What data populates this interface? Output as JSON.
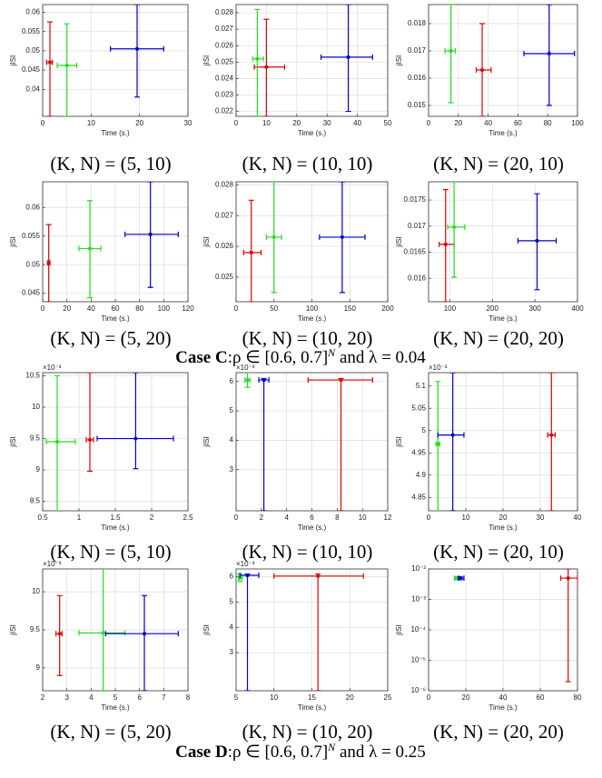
{
  "chart_data": [
    {
      "type": "errorbar",
      "xlabel": "Time (s.)",
      "ylabel": "jISI",
      "caption": "(K, N) = (5, 10)",
      "grid": true,
      "xlim": [
        0,
        30
      ],
      "ylim": [
        0.033,
        0.062
      ],
      "xticks": [
        0,
        10,
        20,
        30
      ],
      "yticks": [
        0.04,
        0.045,
        0.05,
        0.055,
        0.06
      ],
      "series": [
        {
          "color": "#e00000",
          "x": [
            1.5
          ],
          "values": [
            0.047
          ],
          "xlow": [
            0.8
          ],
          "xhigh": [
            2.0
          ],
          "ylow": [
            0.033
          ],
          "yhigh": [
            0.0575
          ]
        },
        {
          "color": "#22dd22",
          "x": [
            5
          ],
          "values": [
            0.0462
          ],
          "xlow": [
            3
          ],
          "xhigh": [
            7
          ],
          "ylow": [
            0.033
          ],
          "yhigh": [
            0.057
          ]
        },
        {
          "color": "#0000cc",
          "x": [
            19.5
          ],
          "values": [
            0.0505
          ],
          "xlow": [
            14
          ],
          "xhigh": [
            25
          ],
          "ylow": [
            0.038
          ],
          "yhigh": [
            0.062
          ]
        }
      ]
    },
    {
      "type": "errorbar",
      "xlabel": "Time (s.)",
      "ylabel": "jISI",
      "caption": "(K, N) = (10, 10)",
      "grid": true,
      "xlim": [
        0,
        50
      ],
      "ylim": [
        0.0217,
        0.0285
      ],
      "xticks": [
        0,
        10,
        20,
        30,
        40,
        50
      ],
      "yticks": [
        0.022,
        0.023,
        0.024,
        0.025,
        0.026,
        0.027,
        0.028
      ],
      "series": [
        {
          "color": "#e00000",
          "x": [
            10
          ],
          "values": [
            0.0247
          ],
          "xlow": [
            6
          ],
          "xhigh": [
            16
          ],
          "ylow": [
            0.0217
          ],
          "yhigh": [
            0.0276
          ]
        },
        {
          "color": "#22dd22",
          "x": [
            7
          ],
          "values": [
            0.0252
          ],
          "xlow": [
            5.5
          ],
          "xhigh": [
            9
          ],
          "ylow": [
            0.0217
          ],
          "yhigh": [
            0.0282
          ]
        },
        {
          "color": "#0000cc",
          "x": [
            37
          ],
          "values": [
            0.0253
          ],
          "xlow": [
            28
          ],
          "xhigh": [
            45
          ],
          "ylow": [
            0.022
          ],
          "yhigh": [
            0.0285
          ]
        }
      ]
    },
    {
      "type": "errorbar",
      "xlabel": "Time (s.)",
      "ylabel": "jISI",
      "caption": "(K, N) = (20, 10)",
      "grid": true,
      "xlim": [
        0,
        100
      ],
      "ylim": [
        0.0146,
        0.0187
      ],
      "xticks": [
        0,
        20,
        40,
        60,
        80,
        100
      ],
      "yticks": [
        0.015,
        0.016,
        0.017,
        0.018
      ],
      "series": [
        {
          "color": "#e00000",
          "x": [
            36
          ],
          "values": [
            0.0163
          ],
          "xlow": [
            32
          ],
          "xhigh": [
            42
          ],
          "ylow": [
            0.0146
          ],
          "yhigh": [
            0.018
          ]
        },
        {
          "color": "#22dd22",
          "x": [
            15
          ],
          "values": [
            0.017
          ],
          "xlow": [
            11
          ],
          "xhigh": [
            18
          ],
          "ylow": [
            0.0151
          ],
          "yhigh": [
            0.0187
          ]
        },
        {
          "color": "#0000cc",
          "x": [
            81
          ],
          "values": [
            0.0169
          ],
          "xlow": [
            64
          ],
          "xhigh": [
            98
          ],
          "ylow": [
            0.015
          ],
          "yhigh": [
            0.0187
          ]
        }
      ]
    },
    {
      "type": "errorbar",
      "xlabel": "Time (s.)",
      "ylabel": "jISI",
      "caption": "(K, N) = (5, 20)",
      "grid": true,
      "xlim": [
        0,
        120
      ],
      "ylim": [
        0.0435,
        0.0645
      ],
      "xticks": [
        0,
        20,
        40,
        60,
        80,
        100,
        120
      ],
      "yticks": [
        0.045,
        0.05,
        0.055,
        0.06
      ],
      "series": [
        {
          "color": "#e00000",
          "x": [
            5
          ],
          "values": [
            0.0503
          ],
          "xlow": [
            4
          ],
          "xhigh": [
            6
          ],
          "ylow": [
            0.0435
          ],
          "yhigh": [
            0.057
          ]
        },
        {
          "color": "#22dd22",
          "x": [
            39
          ],
          "values": [
            0.0528
          ],
          "xlow": [
            30
          ],
          "xhigh": [
            48
          ],
          "ylow": [
            0.0442
          ],
          "yhigh": [
            0.0612
          ]
        },
        {
          "color": "#0000cc",
          "x": [
            89
          ],
          "values": [
            0.0553
          ],
          "xlow": [
            68
          ],
          "xhigh": [
            112
          ],
          "ylow": [
            0.046
          ],
          "yhigh": [
            0.0645
          ]
        }
      ]
    },
    {
      "type": "errorbar",
      "xlabel": "Time (s.)",
      "ylabel": "jISI",
      "caption": "(K, N) = (10, 20)",
      "grid": true,
      "xlim": [
        0,
        200
      ],
      "ylim": [
        0.0242,
        0.0281
      ],
      "xticks": [
        0,
        50,
        100,
        150,
        200
      ],
      "yticks": [
        0.025,
        0.026,
        0.027,
        0.028
      ],
      "series": [
        {
          "color": "#e00000",
          "x": [
            20
          ],
          "values": [
            0.0258
          ],
          "xlow": [
            10
          ],
          "xhigh": [
            33
          ],
          "ylow": [
            0.0242
          ],
          "yhigh": [
            0.0275
          ]
        },
        {
          "color": "#22dd22",
          "x": [
            50
          ],
          "values": [
            0.0263
          ],
          "xlow": [
            40
          ],
          "xhigh": [
            60
          ],
          "ylow": [
            0.0245
          ],
          "yhigh": [
            0.0281
          ]
        },
        {
          "color": "#0000cc",
          "x": [
            140
          ],
          "values": [
            0.0263
          ],
          "xlow": [
            110
          ],
          "xhigh": [
            170
          ],
          "ylow": [
            0.0245
          ],
          "yhigh": [
            0.0281
          ]
        }
      ]
    },
    {
      "type": "errorbar",
      "xlabel": "Time (s.)",
      "ylabel": "jISI",
      "caption": "(K, N) = (20, 20)",
      "grid": true,
      "xlim": [
        50,
        400
      ],
      "ylim": [
        0.01555,
        0.01785
      ],
      "xticks": [
        100,
        200,
        300,
        400
      ],
      "yticks": [
        0.016,
        0.0165,
        0.017,
        0.0175
      ],
      "series": [
        {
          "color": "#e00000",
          "x": [
            90
          ],
          "values": [
            0.01665
          ],
          "xlow": [
            75
          ],
          "xhigh": [
            110
          ],
          "ylow": [
            0.01555
          ],
          "yhigh": [
            0.0177
          ]
        },
        {
          "color": "#22dd22",
          "x": [
            110
          ],
          "values": [
            0.01698
          ],
          "xlow": [
            95
          ],
          "xhigh": [
            135
          ],
          "ylow": [
            0.01602
          ],
          "yhigh": [
            0.01785
          ]
        },
        {
          "color": "#0000cc",
          "x": [
            305
          ],
          "values": [
            0.01672
          ],
          "xlow": [
            260
          ],
          "xhigh": [
            350
          ],
          "ylow": [
            0.01578
          ],
          "yhigh": [
            0.01762
          ]
        }
      ]
    },
    {
      "type": "errorbar",
      "xlabel": "Time (s.)",
      "ylabel": "jISI",
      "caption": "(K, N) = (5, 10)",
      "grid": true,
      "y_multiplier": "×10⁻³",
      "xlim": [
        0.5,
        2.5
      ],
      "ylim": [
        8.35,
        10.55
      ],
      "xticks": [
        0.5,
        1,
        1.5,
        2,
        2.5
      ],
      "yticks": [
        8.5,
        9,
        9.5,
        10,
        10.5
      ],
      "series": [
        {
          "color": "#e00000",
          "x": [
            1.15
          ],
          "values": [
            9.48
          ],
          "xlow": [
            1.1
          ],
          "xhigh": [
            1.2
          ],
          "ylow": [
            8.98
          ],
          "yhigh": [
            10.55
          ]
        },
        {
          "color": "#22dd22",
          "x": [
            0.7
          ],
          "values": [
            9.45
          ],
          "xlow": [
            0.55
          ],
          "xhigh": [
            0.95
          ],
          "ylow": [
            8.35
          ],
          "yhigh": [
            10.5
          ]
        },
        {
          "color": "#0000cc",
          "x": [
            1.78
          ],
          "values": [
            9.5
          ],
          "xlow": [
            1.25
          ],
          "xhigh": [
            2.3
          ],
          "ylow": [
            9.02
          ],
          "yhigh": [
            10.55
          ]
        }
      ]
    },
    {
      "type": "errorbar",
      "xlabel": "Time (s.)",
      "ylabel": "jISI",
      "caption": "(K, N) = (10, 10)",
      "grid": true,
      "y_multiplier": "×10⁻³",
      "xlim": [
        0,
        12
      ],
      "ylim": [
        1.6,
        6.3
      ],
      "xticks": [
        0,
        2,
        4,
        6,
        8,
        10,
        12
      ],
      "yticks": [
        3,
        4,
        5,
        6
      ],
      "series": [
        {
          "color": "#e00000",
          "x": [
            8.3
          ],
          "values": [
            6.05
          ],
          "xlow": [
            5.7
          ],
          "xhigh": [
            10.8
          ],
          "ylow": [
            1.6
          ],
          "yhigh": [
            6.1
          ]
        },
        {
          "color": "#22dd22",
          "x": [
            0.9
          ],
          "values": [
            6.05
          ],
          "xlow": [
            0.7
          ],
          "xhigh": [
            1.1
          ],
          "ylow": [
            5.8
          ],
          "yhigh": [
            6.3
          ]
        },
        {
          "color": "#0000cc",
          "x": [
            2.2
          ],
          "values": [
            6.05
          ],
          "xlow": [
            1.8
          ],
          "xhigh": [
            2.6
          ],
          "ylow": [
            1.6
          ],
          "yhigh": [
            6.1
          ]
        }
      ]
    },
    {
      "type": "errorbar",
      "xlabel": "Time (s.)",
      "ylabel": "jISI",
      "caption": "(K, N) = (20, 10)",
      "grid": true,
      "y_multiplier": "×10⁻³",
      "xlim": [
        0,
        40
      ],
      "ylim": [
        4.82,
        5.13
      ],
      "xticks": [
        0,
        10,
        20,
        30,
        40
      ],
      "yticks": [
        4.85,
        4.9,
        4.95,
        5,
        5.05,
        5.1
      ],
      "series": [
        {
          "color": "#e00000",
          "x": [
            33
          ],
          "values": [
            4.99
          ],
          "xlow": [
            32
          ],
          "xhigh": [
            34
          ],
          "ylow": [
            4.82
          ],
          "yhigh": [
            5.13
          ]
        },
        {
          "color": "#22dd22",
          "x": [
            2.5
          ],
          "values": [
            4.97
          ],
          "xlow": [
            2
          ],
          "xhigh": [
            3
          ],
          "ylow": [
            4.82
          ],
          "yhigh": [
            5.11
          ]
        },
        {
          "color": "#0000cc",
          "x": [
            6.5
          ],
          "values": [
            4.99
          ],
          "xlow": [
            2.5
          ],
          "xhigh": [
            9.5
          ],
          "ylow": [
            4.82
          ],
          "yhigh": [
            5.13
          ]
        }
      ]
    },
    {
      "type": "errorbar",
      "xlabel": "Time (s.)",
      "ylabel": "jISI",
      "caption": "(K, N) = (5, 20)",
      "grid": true,
      "y_multiplier": "×10⁻³",
      "xlim": [
        2,
        8
      ],
      "ylim": [
        8.7,
        10.3
      ],
      "xticks": [
        2,
        3,
        4,
        5,
        6,
        7,
        8
      ],
      "yticks": [
        9,
        9.5,
        10
      ],
      "series": [
        {
          "color": "#e00000",
          "x": [
            2.7
          ],
          "values": [
            9.45
          ],
          "xlow": [
            2.55
          ],
          "xhigh": [
            2.8
          ],
          "ylow": [
            8.9
          ],
          "yhigh": [
            9.95
          ]
        },
        {
          "color": "#22dd22",
          "x": [
            4.5
          ],
          "values": [
            9.46
          ],
          "xlow": [
            3.5
          ],
          "xhigh": [
            5.4
          ],
          "ylow": [
            8.7
          ],
          "yhigh": [
            10.3
          ]
        },
        {
          "color": "#0000cc",
          "x": [
            6.2
          ],
          "values": [
            9.45
          ],
          "xlow": [
            4.6
          ],
          "xhigh": [
            7.6
          ],
          "ylow": [
            8.7
          ],
          "yhigh": [
            9.95
          ]
        }
      ]
    },
    {
      "type": "errorbar",
      "xlabel": "Time (s.)",
      "ylabel": "jISI",
      "caption": "(K, N) = (10, 20)",
      "grid": true,
      "y_multiplier": "×10⁻³",
      "xlim": [
        5,
        25
      ],
      "ylim": [
        1.5,
        6.3
      ],
      "xticks": [
        5,
        10,
        15,
        20,
        25
      ],
      "yticks": [
        3,
        4,
        5,
        6
      ],
      "series": [
        {
          "color": "#e00000",
          "x": [
            15.8
          ],
          "values": [
            6.02
          ],
          "xlow": [
            10
          ],
          "xhigh": [
            21.8
          ],
          "ylow": [
            1.5
          ],
          "yhigh": [
            6.1
          ]
        },
        {
          "color": "#22dd22",
          "x": [
            5.5
          ],
          "values": [
            5.95
          ],
          "xlow": [
            5.3
          ],
          "xhigh": [
            5.8
          ],
          "ylow": [
            5.8
          ],
          "yhigh": [
            6.1
          ]
        },
        {
          "color": "#0000cc",
          "x": [
            6.5
          ],
          "values": [
            6.05
          ],
          "xlow": [
            5.5
          ],
          "xhigh": [
            8
          ],
          "ylow": [
            1.5
          ],
          "yhigh": [
            6.1
          ]
        }
      ]
    },
    {
      "type": "errorbar",
      "xlabel": "Time (s.)",
      "ylabel": "jISI",
      "caption": "(K, N) = (20, 20)",
      "grid": true,
      "ylog": true,
      "xlim": [
        0,
        80
      ],
      "ylim": [
        1e-06,
        0.01
      ],
      "xticks": [
        0,
        20,
        40,
        60,
        80
      ],
      "yticks": [
        {
          "value": 1e-06,
          "label": "10⁻⁶"
        },
        {
          "value": 1e-05,
          "label": "10⁻⁵"
        },
        {
          "value": 0.0001,
          "label": "10⁻⁴"
        },
        {
          "value": 0.001,
          "label": "10⁻³"
        },
        {
          "value": 0.01,
          "label": "10⁻²"
        }
      ],
      "series": [
        {
          "color": "#e00000",
          "x": [
            75
          ],
          "values": [
            0.005
          ],
          "xlow": [
            71
          ],
          "xhigh": [
            80
          ],
          "ylow": [
            2e-06
          ],
          "yhigh": [
            0.01
          ]
        },
        {
          "color": "#22dd22",
          "x": [
            15
          ],
          "values": [
            0.005
          ],
          "xlow": [
            14
          ],
          "xhigh": [
            17
          ],
          "ylow": [
            0.0045
          ],
          "yhigh": [
            0.0055
          ]
        },
        {
          "color": "#0000cc",
          "x": [
            17
          ],
          "values": [
            0.005
          ],
          "xlow": [
            16
          ],
          "xhigh": [
            19
          ],
          "ylow": [
            0.0045
          ],
          "yhigh": [
            0.0055
          ]
        }
      ]
    }
  ],
  "figure_captions": [
    {
      "label": "Case C",
      "text": ":ρ ∈ [0.6, 0.7]",
      "sup": "N",
      "tail": " and λ = 0.04"
    },
    {
      "label": "Case D",
      "text": ":ρ ∈ [0.6, 0.7]",
      "sup": "N",
      "tail": " and λ = 0.25"
    }
  ]
}
